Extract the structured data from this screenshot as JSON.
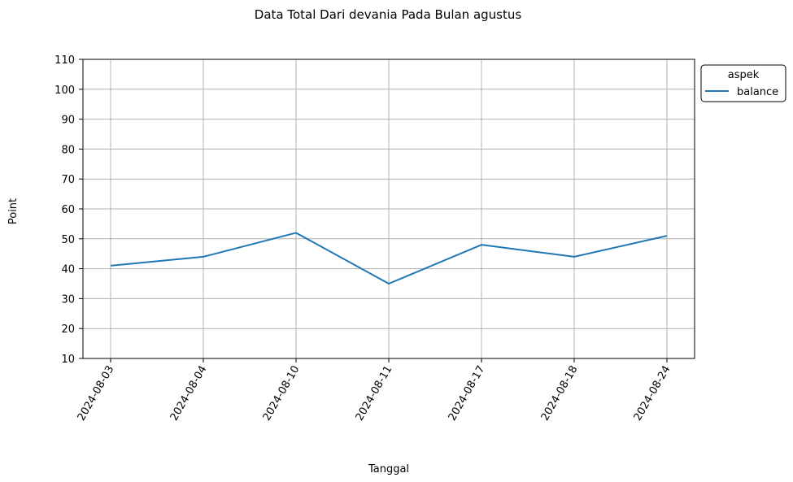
{
  "chart_data": {
    "type": "line",
    "title": "Data Total Dari devania Pada Bulan agustus",
    "xlabel": "Tanggal",
    "ylabel": "Point",
    "categories": [
      "2024-08-03",
      "2024-08-04",
      "2024-08-10",
      "2024-08-11",
      "2024-08-17",
      "2024-08-18",
      "2024-08-24"
    ],
    "series": [
      {
        "name": "balance",
        "values": [
          41,
          44,
          52,
          35,
          48,
          44,
          51
        ],
        "color": "#1f77b4"
      }
    ],
    "ylim": [
      10,
      110
    ],
    "yticks": [
      10,
      20,
      30,
      40,
      50,
      60,
      70,
      80,
      90,
      100,
      110
    ],
    "grid": true,
    "legend": {
      "title": "aspek",
      "placement": "outside-top-right"
    },
    "xtick_rotation": "60"
  }
}
